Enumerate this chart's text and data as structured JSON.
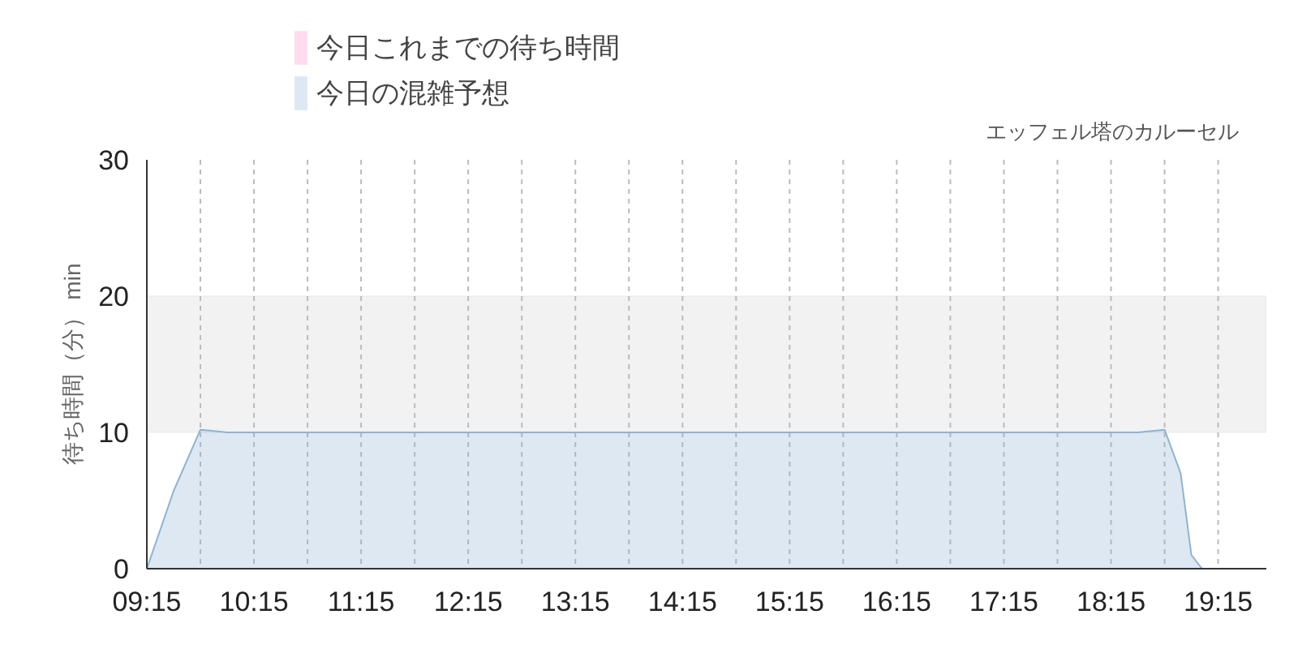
{
  "chart_data": {
    "type": "area",
    "ylabel": "待ち時間（分） min",
    "annotations": [
      "エッフェル塔のカルーセル"
    ],
    "x": [
      9.25,
      9.5,
      9.75,
      10.0,
      11.0,
      12.0,
      13.0,
      14.0,
      15.0,
      16.0,
      17.0,
      18.0,
      18.5,
      18.75,
      18.9,
      19.0,
      19.1,
      19.4,
      19.7
    ],
    "series": [
      {
        "name": "今日これまでの待ち時間",
        "color": "#ff8cc6",
        "values": [
          null,
          null,
          null,
          null,
          null,
          null,
          null,
          null,
          null,
          null,
          null,
          null,
          null,
          null,
          null,
          null,
          null,
          null,
          null
        ]
      },
      {
        "name": "今日の混雑予想",
        "color": "#8fb3d3",
        "values": [
          0,
          5.7,
          10.2,
          10,
          10,
          10,
          10,
          10,
          10,
          10,
          10,
          10,
          10,
          10.2,
          7,
          1,
          0,
          0,
          0
        ]
      }
    ],
    "xlim": [
      9.25,
      19.7
    ],
    "ylim": [
      0,
      30
    ],
    "yticks": [
      0,
      10,
      20,
      30
    ],
    "xticks": [
      {
        "value": 9.25,
        "label": "09:15"
      },
      {
        "value": 9.75,
        "label": null
      },
      {
        "value": 10.25,
        "label": "10:15"
      },
      {
        "value": 10.75,
        "label": null
      },
      {
        "value": 11.25,
        "label": "11:15"
      },
      {
        "value": 11.75,
        "label": null
      },
      {
        "value": 12.25,
        "label": "12:15"
      },
      {
        "value": 12.75,
        "label": null
      },
      {
        "value": 13.25,
        "label": "13:15"
      },
      {
        "value": 13.75,
        "label": null
      },
      {
        "value": 14.25,
        "label": "14:15"
      },
      {
        "value": 14.75,
        "label": null
      },
      {
        "value": 15.25,
        "label": "15:15"
      },
      {
        "value": 15.75,
        "label": null
      },
      {
        "value": 16.25,
        "label": "16:15"
      },
      {
        "value": 16.75,
        "label": null
      },
      {
        "value": 17.25,
        "label": "17:15"
      },
      {
        "value": 17.75,
        "label": null
      },
      {
        "value": 18.25,
        "label": "18:15"
      },
      {
        "value": 18.75,
        "label": null
      },
      {
        "value": 19.25,
        "label": "19:15"
      }
    ],
    "bands": [
      {
        "axis": "y",
        "from": 10,
        "to": 20,
        "color": "#f2f2f2"
      }
    ],
    "grid": "x",
    "legend": "top left"
  }
}
